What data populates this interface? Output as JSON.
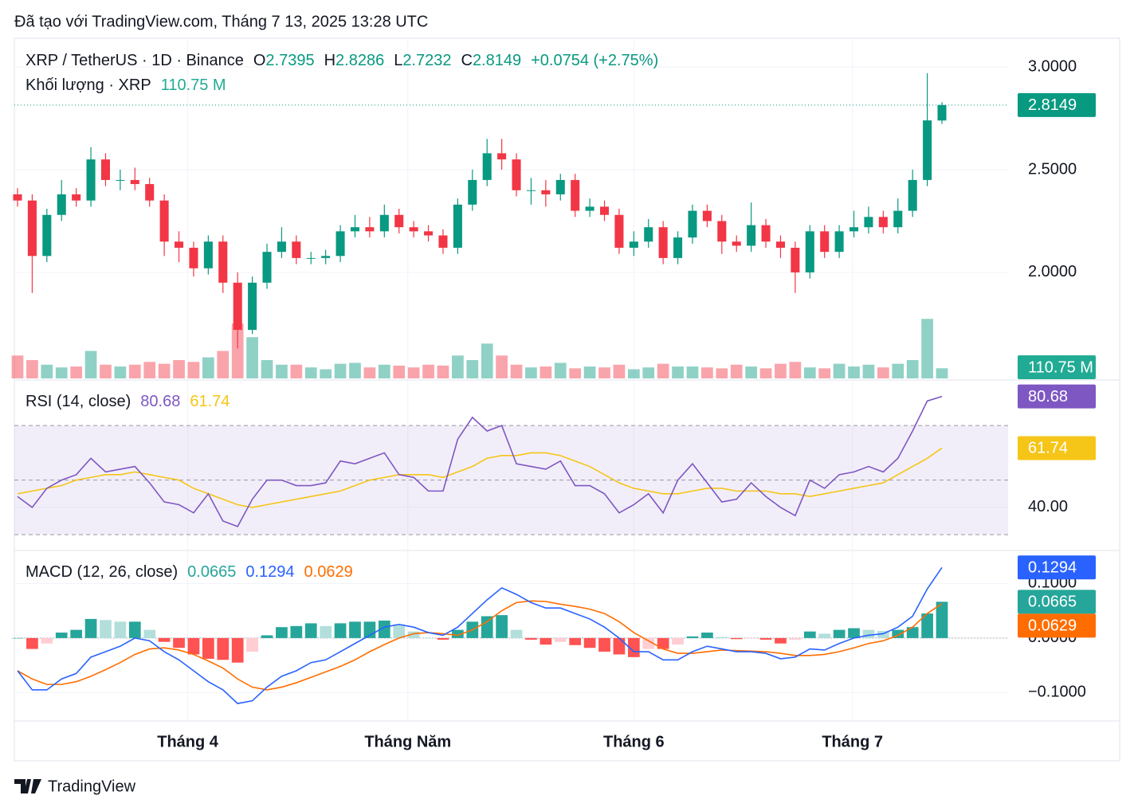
{
  "header": {
    "created": "Đã tạo với TradingView.com, Tháng 7 13, 2025 13:28 UTC"
  },
  "footer": {
    "brand": "TradingView"
  },
  "chart_data": {
    "type": "candlestick",
    "title": "XRP / TetherUS · 1D · Binance",
    "ohlc_letters": [
      "O",
      "H",
      "L",
      "C"
    ],
    "change_label": "+0.0754 (+2.75%)",
    "up_color": "#089981",
    "down_color": "#f23645",
    "ylim": [
      1.48,
      3.14
    ],
    "yticks": [
      {
        "value": 3,
        "label": "3.0000"
      },
      {
        "value": 2.5,
        "label": "2.5000"
      },
      {
        "value": 2,
        "label": "2.0000"
      }
    ],
    "xticks": [
      {
        "value": 11.6,
        "label": "Tháng 4"
      },
      {
        "value": 26.6,
        "label": "Tháng Năm"
      },
      {
        "value": 42.0,
        "label": "Tháng 6"
      },
      {
        "value": 56.9,
        "label": "Tháng 7"
      }
    ],
    "grid": true,
    "open": [
      2.38,
      2.35,
      2.08,
      2.28,
      2.38,
      2.35,
      2.55,
      2.45,
      2.45,
      2.43,
      2.35,
      2.15,
      2.12,
      2.02,
      2.15,
      1.95,
      1.72,
      1.95,
      2.1,
      2.15,
      2.07,
      2.07,
      2.08,
      2.2,
      2.22,
      2.2,
      2.28,
      2.22,
      2.2,
      2.18,
      2.12,
      2.33,
      2.45,
      2.58,
      2.55,
      2.4,
      2.4,
      2.38,
      2.45,
      2.3,
      2.32,
      2.28,
      2.12,
      2.15,
      2.22,
      2.07,
      2.17,
      2.3,
      2.25,
      2.15,
      2.13,
      2.23,
      2.15,
      2.12,
      2.0,
      2.2,
      2.1,
      2.2,
      2.22,
      2.27,
      2.22,
      2.3,
      2.45,
      2.7395
    ],
    "high": [
      2.41,
      2.38,
      2.31,
      2.45,
      2.41,
      2.61,
      2.58,
      2.5,
      2.51,
      2.46,
      2.38,
      2.2,
      2.15,
      2.18,
      2.18,
      2.0,
      1.98,
      2.14,
      2.22,
      2.18,
      2.1,
      2.11,
      2.23,
      2.28,
      2.27,
      2.33,
      2.31,
      2.25,
      2.23,
      2.21,
      2.36,
      2.5,
      2.65,
      2.65,
      2.58,
      2.46,
      2.45,
      2.48,
      2.48,
      2.36,
      2.35,
      2.31,
      2.2,
      2.26,
      2.25,
      2.2,
      2.33,
      2.33,
      2.28,
      2.18,
      2.34,
      2.26,
      2.18,
      2.15,
      2.23,
      2.23,
      2.23,
      2.3,
      2.32,
      2.3,
      2.36,
      2.5,
      2.97,
      2.8286
    ],
    "low": [
      2.32,
      1.9,
      2.05,
      2.25,
      2.32,
      2.32,
      2.42,
      2.4,
      2.4,
      2.32,
      2.08,
      2.05,
      1.98,
      1.99,
      1.9,
      1.63,
      1.7,
      1.92,
      2.07,
      2.04,
      2.04,
      2.04,
      2.05,
      2.17,
      2.17,
      2.17,
      2.19,
      2.17,
      2.15,
      2.09,
      2.09,
      2.3,
      2.42,
      2.5,
      2.37,
      2.33,
      2.32,
      2.35,
      2.27,
      2.27,
      2.25,
      2.09,
      2.08,
      2.12,
      2.04,
      2.04,
      2.14,
      2.22,
      2.09,
      2.1,
      2.1,
      2.12,
      2.07,
      1.9,
      1.97,
      2.07,
      2.07,
      2.17,
      2.19,
      2.19,
      2.19,
      2.27,
      2.42,
      2.7232
    ],
    "close": [
      2.35,
      2.08,
      2.28,
      2.38,
      2.35,
      2.55,
      2.45,
      2.45,
      2.43,
      2.35,
      2.15,
      2.12,
      2.02,
      2.15,
      1.95,
      1.72,
      1.95,
      2.1,
      2.15,
      2.07,
      2.07,
      2.08,
      2.2,
      2.22,
      2.2,
      2.28,
      2.22,
      2.2,
      2.18,
      2.12,
      2.33,
      2.45,
      2.58,
      2.55,
      2.4,
      2.4,
      2.38,
      2.45,
      2.3,
      2.32,
      2.28,
      2.12,
      2.15,
      2.22,
      2.07,
      2.17,
      2.3,
      2.25,
      2.15,
      2.13,
      2.23,
      2.15,
      2.12,
      2.0,
      2.2,
      2.1,
      2.2,
      2.22,
      2.27,
      2.22,
      2.3,
      2.45,
      2.74,
      2.8149
    ],
    "volume": {
      "name": "Khối lượng · XRP",
      "value_label": "110.75 M",
      "ylim": [
        0,
        800
      ],
      "values": [
        250,
        200,
        150,
        120,
        130,
        300,
        150,
        130,
        150,
        180,
        160,
        200,
        180,
        230,
        300,
        600,
        450,
        200,
        150,
        150,
        120,
        100,
        160,
        170,
        120,
        150,
        140,
        120,
        150,
        140,
        250,
        200,
        380,
        250,
        150,
        120,
        130,
        170,
        110,
        130,
        120,
        150,
        100,
        120,
        160,
        130,
        130,
        120,
        110,
        150,
        130,
        110,
        160,
        180,
        120,
        110,
        160,
        130,
        150,
        120,
        160,
        200,
        650,
        110.75
      ]
    },
    "rsi": {
      "title": "RSI (14, close)",
      "color": "#7e57c2",
      "ma_color": "#f5c518",
      "ylim": [
        24.5,
        86.4
      ],
      "yticks": [
        {
          "value": 40,
          "label": "40.00"
        }
      ],
      "levels": [
        30,
        50,
        70
      ],
      "values": [
        44,
        40,
        47,
        50,
        52,
        58,
        53,
        54,
        55,
        49,
        42,
        41,
        38,
        45,
        35,
        33,
        43,
        50,
        50,
        48,
        48,
        49,
        57,
        56,
        58,
        60,
        52,
        51,
        46,
        46,
        65,
        73,
        68,
        70,
        56,
        55,
        54,
        57,
        48,
        48,
        45,
        38,
        41,
        45,
        38,
        50,
        56,
        49,
        42,
        43,
        49,
        44,
        40,
        37,
        50,
        47,
        52,
        53,
        55,
        53,
        58,
        68,
        79,
        80.68
      ],
      "ma_values": [
        45,
        46,
        47,
        48,
        50,
        51,
        52,
        52,
        53,
        52,
        51,
        50,
        47,
        45,
        43,
        41,
        40,
        41,
        42,
        43,
        44,
        45,
        46,
        48,
        50,
        51,
        52,
        52,
        52,
        51,
        53,
        55,
        58,
        59,
        59,
        60,
        60,
        59,
        57,
        55,
        52,
        49,
        47,
        46,
        45,
        45,
        46,
        47,
        47,
        46,
        46,
        46,
        45,
        45,
        44,
        45,
        46,
        47,
        48,
        49,
        52,
        55,
        58,
        61.74
      ]
    },
    "macd": {
      "title": "MACD (12, 26, close)",
      "macd_color": "#2962ff",
      "signal_color": "#ff6d00",
      "hist_color": "#26a69a",
      "ylim": [
        -0.152,
        0.159
      ],
      "yticks": [
        {
          "value": 0.1,
          "label": "0.1000"
        },
        {
          "value": 0,
          "label": "0.0000"
        },
        {
          "value": -0.1,
          "label": "−0.1000"
        }
      ],
      "histogram": [
        0,
        -0.02,
        -0.01,
        0.01,
        0.015,
        0.035,
        0.033,
        0.03,
        0.03,
        0.015,
        -0.007,
        -0.018,
        -0.03,
        -0.038,
        -0.04,
        -0.045,
        -0.025,
        0.005,
        0.02,
        0.022,
        0.027,
        0.022,
        0.027,
        0.03,
        0.03,
        0.032,
        0.025,
        0.012,
        0,
        -0.003,
        0.015,
        0.03,
        0.04,
        0.042,
        0.015,
        -0.003,
        -0.012,
        -0.007,
        -0.013,
        -0.018,
        -0.025,
        -0.03,
        -0.035,
        -0.02,
        -0.02,
        -0.012,
        0.003,
        0.01,
        0.002,
        -0.002,
        -0.001,
        -0.003,
        -0.01,
        -0.003,
        0.012,
        0.008,
        0.015,
        0.018,
        0.015,
        0.013,
        0.015,
        0.02,
        0.045,
        0.0665
      ],
      "macd": [
        -0.06,
        -0.095,
        -0.095,
        -0.075,
        -0.065,
        -0.035,
        -0.025,
        -0.015,
        0,
        -0.005,
        -0.025,
        -0.04,
        -0.06,
        -0.08,
        -0.095,
        -0.12,
        -0.115,
        -0.09,
        -0.07,
        -0.06,
        -0.045,
        -0.04,
        -0.025,
        -0.01,
        0.005,
        0.02,
        0.025,
        0.02,
        0.01,
        0.005,
        0.02,
        0.045,
        0.07,
        0.092,
        0.08,
        0.065,
        0.055,
        0.055,
        0.045,
        0.035,
        0.02,
        0,
        -0.025,
        -0.025,
        -0.04,
        -0.04,
        -0.025,
        -0.015,
        -0.02,
        -0.025,
        -0.025,
        -0.028,
        -0.038,
        -0.035,
        -0.02,
        -0.022,
        -0.01,
        0,
        0.005,
        0.008,
        0.02,
        0.04,
        0.09,
        0.1294
      ],
      "signal": [
        -0.06,
        -0.075,
        -0.085,
        -0.085,
        -0.08,
        -0.07,
        -0.058,
        -0.045,
        -0.03,
        -0.02,
        -0.018,
        -0.022,
        -0.03,
        -0.042,
        -0.055,
        -0.075,
        -0.09,
        -0.095,
        -0.09,
        -0.082,
        -0.072,
        -0.062,
        -0.052,
        -0.04,
        -0.025,
        -0.012,
        0,
        0.008,
        0.01,
        0.008,
        0.005,
        0.015,
        0.03,
        0.05,
        0.065,
        0.068,
        0.067,
        0.062,
        0.058,
        0.053,
        0.045,
        0.03,
        0.01,
        -0.005,
        -0.02,
        -0.028,
        -0.028,
        -0.025,
        -0.022,
        -0.023,
        -0.024,
        -0.025,
        -0.028,
        -0.032,
        -0.032,
        -0.03,
        -0.025,
        -0.018,
        -0.01,
        -0.005,
        0.005,
        0.02,
        0.045,
        0.0629
      ]
    }
  }
}
